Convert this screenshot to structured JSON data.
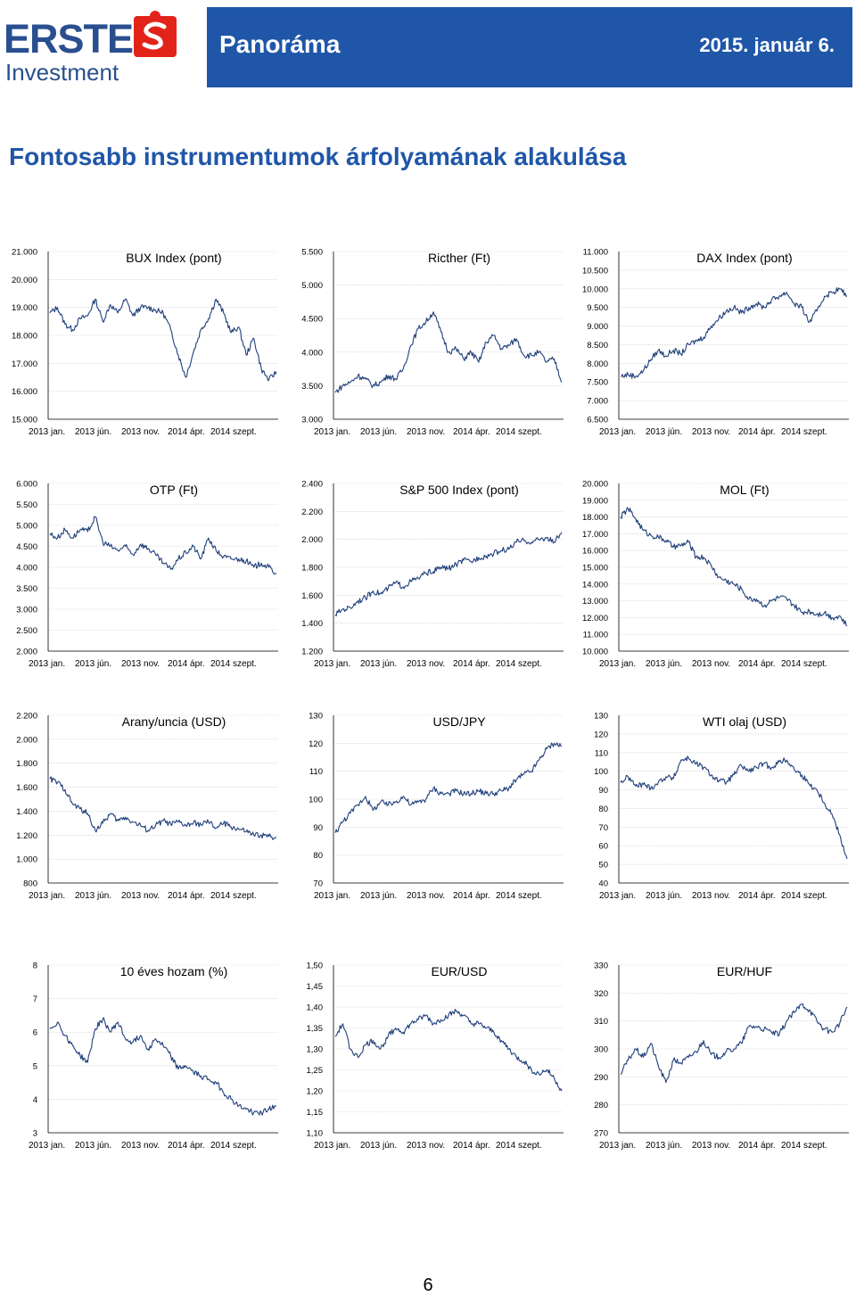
{
  "header": {
    "logo_name": "ERSTE",
    "logo_sub": "Investment",
    "title": "Panoráma",
    "date": "2015. január 6.",
    "colors": {
      "brand_blue": "#1f56a8",
      "logo_red": "#e2231a",
      "logo_blue": "#2a4f8f"
    }
  },
  "headline": "Fontosabb instrumentumok árfolyamának alakulása",
  "page_number": "6",
  "chart_data": [
    {
      "type": "line",
      "title": "BUX Index (pont)",
      "yticks": [
        "15.000",
        "16.000",
        "17.000",
        "18.000",
        "19.000",
        "20.000",
        "21.000"
      ],
      "ylim": [
        15000,
        21000
      ],
      "xticks": [
        "2013 jan.",
        "2013 jún.",
        "2013 nov.",
        "2014 ápr.",
        "2014 szept."
      ],
      "series": [
        {
          "values": [
            18800,
            19000,
            18400,
            18200,
            18600,
            18700,
            19300,
            18500,
            19100,
            18800,
            19300,
            18700,
            19000,
            19000,
            18900,
            18800,
            18200,
            17300,
            16500,
            17400,
            18200,
            18600,
            19300,
            18800,
            18100,
            18300,
            17300,
            17900,
            16800,
            16400,
            16700
          ]
        }
      ]
    },
    {
      "type": "line",
      "title": "Ricther (Ft)",
      "yticks": [
        "3.000",
        "3.500",
        "4.000",
        "4.500",
        "5.000",
        "5.500"
      ],
      "ylim": [
        3000,
        5500
      ],
      "xticks": [
        "2013 jan.",
        "2013 jún.",
        "2013 nov.",
        "2014 ápr.",
        "2014 szept."
      ],
      "series": [
        {
          "values": [
            3400,
            3500,
            3550,
            3650,
            3600,
            3500,
            3550,
            3650,
            3600,
            3750,
            4100,
            4350,
            4450,
            4600,
            4300,
            4000,
            4050,
            3900,
            4000,
            3850,
            4150,
            4250,
            4050,
            4100,
            4200,
            3950,
            3950,
            4000,
            3850,
            3900,
            3550
          ]
        }
      ]
    },
    {
      "type": "line",
      "title": "DAX Index (pont)",
      "yticks": [
        "6.500",
        "7.000",
        "7.500",
        "8.000",
        "8.500",
        "9.000",
        "9.500",
        "10.000",
        "10.500",
        "11.000"
      ],
      "ylim": [
        6500,
        11000
      ],
      "xticks": [
        "2013 jan.",
        "2013 jún.",
        "2013 nov.",
        "2014 ápr.",
        "2014 szept."
      ],
      "series": [
        {
          "values": [
            7650,
            7700,
            7650,
            7800,
            8100,
            8350,
            8200,
            8350,
            8250,
            8500,
            8600,
            8700,
            9000,
            9200,
            9400,
            9500,
            9350,
            9500,
            9600,
            9500,
            9700,
            9800,
            9900,
            9600,
            9500,
            9100,
            9400,
            9800,
            9900,
            10000,
            9800
          ]
        }
      ]
    },
    {
      "type": "line",
      "title": "OTP (Ft)",
      "yticks": [
        "2.000",
        "2.500",
        "3.000",
        "3.500",
        "4.000",
        "4.500",
        "5.000",
        "5.500",
        "6.000"
      ],
      "ylim": [
        2000,
        6000
      ],
      "xticks": [
        "2013 jan.",
        "2013 jún.",
        "2013 nov.",
        "2014 ápr.",
        "2014 szept."
      ],
      "series": [
        {
          "values": [
            4800,
            4700,
            4900,
            4700,
            4900,
            4850,
            5200,
            4600,
            4500,
            4400,
            4500,
            4300,
            4550,
            4450,
            4300,
            4100,
            3950,
            4200,
            4350,
            4500,
            4200,
            4700,
            4400,
            4250,
            4200,
            4200,
            4150,
            4000,
            4100,
            4000,
            3850
          ]
        }
      ]
    },
    {
      "type": "line",
      "title": "S&P 500 Index (pont)",
      "yticks": [
        "1.200",
        "1.400",
        "1.600",
        "1.800",
        "2.000",
        "2.200",
        "2.400"
      ],
      "ylim": [
        1200,
        2400
      ],
      "xticks": [
        "2013 jan.",
        "2013 jún.",
        "2013 nov.",
        "2014 ápr.",
        "2014 szept."
      ],
      "series": [
        {
          "values": [
            1460,
            1500,
            1510,
            1560,
            1580,
            1630,
            1610,
            1650,
            1690,
            1660,
            1700,
            1720,
            1760,
            1770,
            1800,
            1790,
            1820,
            1850,
            1840,
            1870,
            1880,
            1900,
            1920,
            1930,
            1980,
            1990,
            1980,
            2000,
            2010,
            1980,
            2050
          ]
        }
      ]
    },
    {
      "type": "line",
      "title": "MOL (Ft)",
      "yticks": [
        "10.000",
        "11.000",
        "12.000",
        "13.000",
        "14.000",
        "15.000",
        "16.000",
        "17.000",
        "18.000",
        "19.000",
        "20.000"
      ],
      "ylim": [
        10000,
        20000
      ],
      "xticks": [
        "2013 jan.",
        "2013 jún.",
        "2013 nov.",
        "2014 ápr.",
        "2014 szept."
      ],
      "series": [
        {
          "values": [
            18000,
            18500,
            17900,
            17200,
            16900,
            16800,
            16600,
            16200,
            16300,
            16500,
            15600,
            15600,
            15100,
            14400,
            14200,
            14000,
            13700,
            13100,
            13100,
            12700,
            13000,
            13200,
            13100,
            12700,
            12300,
            12400,
            12200,
            12300,
            12000,
            12100,
            11500
          ]
        }
      ]
    },
    {
      "type": "line",
      "title": "Arany/uncia (USD)",
      "yticks": [
        "800",
        "1.000",
        "1.200",
        "1.400",
        "1.600",
        "1.800",
        "2.000",
        "2.200"
      ],
      "ylim": [
        800,
        2200
      ],
      "xticks": [
        "2013 jan.",
        "2013 jún.",
        "2013 nov.",
        "2014 ápr.",
        "2014 szept."
      ],
      "series": [
        {
          "values": [
            1670,
            1640,
            1580,
            1460,
            1420,
            1380,
            1240,
            1300,
            1380,
            1320,
            1350,
            1310,
            1280,
            1240,
            1280,
            1320,
            1290,
            1310,
            1280,
            1300,
            1290,
            1310,
            1260,
            1300,
            1270,
            1250,
            1230,
            1200,
            1200,
            1190,
            1180
          ]
        }
      ]
    },
    {
      "type": "line",
      "title": "USD/JPY",
      "yticks": [
        "70",
        "80",
        "90",
        "100",
        "110",
        "120",
        "130"
      ],
      "ylim": [
        70,
        130
      ],
      "xticks": [
        "2013 jan.",
        "2013 jún.",
        "2013 nov.",
        "2014 ápr.",
        "2014 szept."
      ],
      "series": [
        {
          "values": [
            88,
            92,
            95,
            98,
            101,
            96,
            99,
            98,
            99,
            101,
            98,
            99,
            100,
            104,
            102,
            102,
            103,
            102,
            102,
            103,
            102,
            102,
            103,
            104,
            107,
            109,
            110,
            114,
            118,
            120,
            119
          ]
        }
      ]
    },
    {
      "type": "line",
      "title": "WTI olaj (USD)",
      "yticks": [
        "40",
        "50",
        "60",
        "70",
        "80",
        "90",
        "100",
        "110",
        "120",
        "130"
      ],
      "ylim": [
        40,
        130
      ],
      "xticks": [
        "2013 jan.",
        "2013 jún.",
        "2013 nov.",
        "2014 ápr.",
        "2014 szept."
      ],
      "series": [
        {
          "values": [
            94,
            97,
            92,
            93,
            91,
            94,
            97,
            96,
            106,
            107,
            104,
            102,
            98,
            95,
            94,
            98,
            103,
            100,
            102,
            104,
            102,
            105,
            106,
            101,
            98,
            93,
            90,
            83,
            77,
            66,
            53
          ]
        }
      ]
    },
    {
      "type": "line",
      "title": "10 éves hozam (%)",
      "yticks": [
        "3",
        "4",
        "5",
        "6",
        "7",
        "8"
      ],
      "ylim": [
        3,
        8
      ],
      "xticks": [
        "2013 jan.",
        "2013 jún.",
        "2013 nov.",
        "2014 ápr.",
        "2014 szept."
      ],
      "series": [
        {
          "values": [
            6.1,
            6.3,
            5.9,
            5.6,
            5.3,
            5.1,
            6.1,
            6.4,
            6.0,
            6.3,
            5.8,
            5.7,
            5.9,
            5.5,
            5.8,
            5.6,
            5.3,
            4.9,
            5.0,
            4.8,
            4.7,
            4.6,
            4.5,
            4.2,
            4.0,
            3.8,
            3.7,
            3.6,
            3.6,
            3.7,
            3.8
          ]
        }
      ]
    },
    {
      "type": "line",
      "title": "EUR/USD",
      "yticks": [
        "1,10",
        "1,15",
        "1,20",
        "1,25",
        "1,30",
        "1,35",
        "1,40",
        "1,45",
        "1,50"
      ],
      "ylim": [
        1.1,
        1.5
      ],
      "xticks": [
        "2013 jan.",
        "2013 jún.",
        "2013 nov.",
        "2014 ápr.",
        "2014 szept."
      ],
      "series": [
        {
          "values": [
            1.33,
            1.36,
            1.3,
            1.28,
            1.31,
            1.32,
            1.3,
            1.33,
            1.35,
            1.34,
            1.36,
            1.37,
            1.38,
            1.36,
            1.37,
            1.38,
            1.39,
            1.38,
            1.36,
            1.36,
            1.35,
            1.34,
            1.32,
            1.3,
            1.28,
            1.27,
            1.25,
            1.24,
            1.25,
            1.23,
            1.2
          ]
        }
      ]
    },
    {
      "type": "line",
      "title": "EUR/HUF",
      "yticks": [
        "270",
        "280",
        "290",
        "300",
        "310",
        "320",
        "330"
      ],
      "ylim": [
        270,
        330
      ],
      "xticks": [
        "2013 jan.",
        "2013 jún.",
        "2013 nov.",
        "2014 ápr.",
        "2014 szept."
      ],
      "series": [
        {
          "values": [
            291,
            296,
            300,
            297,
            302,
            294,
            288,
            296,
            295,
            297,
            299,
            303,
            298,
            297,
            299,
            300,
            302,
            308,
            308,
            307,
            306,
            305,
            310,
            313,
            316,
            314,
            310,
            307,
            306,
            309,
            315
          ]
        }
      ]
    }
  ]
}
